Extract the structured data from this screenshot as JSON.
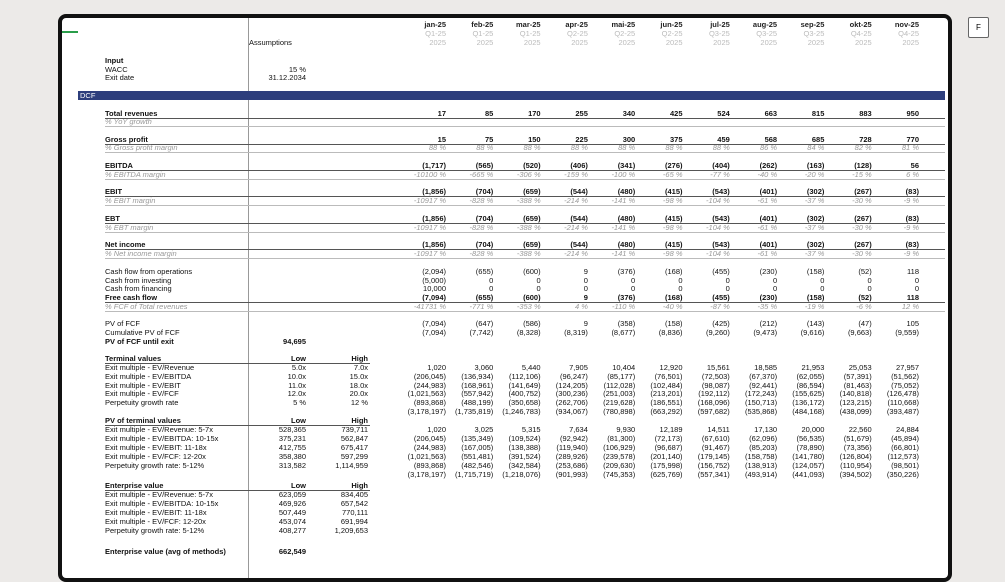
{
  "button": "F",
  "assumptions_header": "Assumptions",
  "section": "DCF",
  "months": [
    {
      "name": "jan-25",
      "quarter": "Q1-25",
      "year": "2025"
    },
    {
      "name": "feb-25",
      "quarter": "Q1-25",
      "year": "2025"
    },
    {
      "name": "mar-25",
      "quarter": "Q1-25",
      "year": "2025"
    },
    {
      "name": "apr-25",
      "quarter": "Q2-25",
      "year": "2025"
    },
    {
      "name": "mai-25",
      "quarter": "Q2-25",
      "year": "2025"
    },
    {
      "name": "jun-25",
      "quarter": "Q2-25",
      "year": "2025"
    },
    {
      "name": "jul-25",
      "quarter": "Q3-25",
      "year": "2025"
    },
    {
      "name": "aug-25",
      "quarter": "Q3-25",
      "year": "2025"
    },
    {
      "name": "sep-25",
      "quarter": "Q3-25",
      "year": "2025"
    },
    {
      "name": "okt-25",
      "quarter": "Q4-25",
      "year": "2025"
    },
    {
      "name": "nov-25",
      "quarter": "Q4-25",
      "year": "2025"
    }
  ],
  "rows": [
    {
      "label": "Input",
      "style": "bold"
    },
    {
      "label": "WACC",
      "style": "normal",
      "low": "15 %"
    },
    {
      "label": "Exit date",
      "style": "normal",
      "low": "31.12.2034"
    },
    {
      "label": "Total revenues",
      "style": "bold",
      "values": [
        "17",
        "85",
        "170",
        "255",
        "340",
        "425",
        "524",
        "663",
        "815",
        "883",
        "950"
      ]
    },
    {
      "label": "% YoY growth",
      "style": "italic"
    },
    {
      "label": "Gross profit",
      "style": "bold",
      "values": [
        "15",
        "75",
        "150",
        "225",
        "300",
        "375",
        "459",
        "568",
        "685",
        "728",
        "770"
      ]
    },
    {
      "label": "% Gross profit margin",
      "style": "italic",
      "values": [
        "88 %",
        "88 %",
        "88 %",
        "88 %",
        "88 %",
        "88 %",
        "88 %",
        "86 %",
        "84 %",
        "82 %",
        "81 %"
      ]
    },
    {
      "label": "EBITDA",
      "style": "bold",
      "values": [
        "(1,717)",
        "(565)",
        "(520)",
        "(406)",
        "(341)",
        "(276)",
        "(404)",
        "(262)",
        "(163)",
        "(128)",
        "56"
      ]
    },
    {
      "label": "% EBITDA margin",
      "style": "italic",
      "values": [
        "-10100 %",
        "-665 %",
        "-306 %",
        "-159 %",
        "-100 %",
        "-65 %",
        "-77 %",
        "-40 %",
        "-20 %",
        "-15 %",
        "6 %"
      ]
    },
    {
      "label": "EBIT",
      "style": "bold",
      "values": [
        "(1,856)",
        "(704)",
        "(659)",
        "(544)",
        "(480)",
        "(415)",
        "(543)",
        "(401)",
        "(302)",
        "(267)",
        "(83)"
      ]
    },
    {
      "label": "% EBIT margin",
      "style": "italic",
      "values": [
        "-10917 %",
        "-828 %",
        "-388 %",
        "-214 %",
        "-141 %",
        "-98 %",
        "-104 %",
        "-61 %",
        "-37 %",
        "-30 %",
        "-9 %"
      ]
    },
    {
      "label": "EBT",
      "style": "bold",
      "values": [
        "(1,856)",
        "(704)",
        "(659)",
        "(544)",
        "(480)",
        "(415)",
        "(543)",
        "(401)",
        "(302)",
        "(267)",
        "(83)"
      ]
    },
    {
      "label": "% EBT margin",
      "style": "italic",
      "values": [
        "-10917 %",
        "-828 %",
        "-388 %",
        "-214 %",
        "-141 %",
        "-98 %",
        "-104 %",
        "-61 %",
        "-37 %",
        "-30 %",
        "-9 %"
      ]
    },
    {
      "label": "Net income",
      "style": "bold",
      "values": [
        "(1,856)",
        "(704)",
        "(659)",
        "(544)",
        "(480)",
        "(415)",
        "(543)",
        "(401)",
        "(302)",
        "(267)",
        "(83)"
      ]
    },
    {
      "label": "% Net income margin",
      "style": "italic",
      "values": [
        "-10917 %",
        "-828 %",
        "-388 %",
        "-214 %",
        "-141 %",
        "-98 %",
        "-104 %",
        "-61 %",
        "-37 %",
        "-30 %",
        "-9 %"
      ]
    },
    {
      "label": "Cash flow from operations",
      "style": "normal",
      "values": [
        "(2,094)",
        "(655)",
        "(600)",
        "9",
        "(376)",
        "(168)",
        "(455)",
        "(230)",
        "(158)",
        "(52)",
        "118"
      ]
    },
    {
      "label": "Cash from investing",
      "style": "normal",
      "values": [
        "(5,000)",
        "0",
        "0",
        "0",
        "0",
        "0",
        "0",
        "0",
        "0",
        "0",
        "0"
      ]
    },
    {
      "label": "Cash from financing",
      "style": "normal",
      "values": [
        "10,000",
        "0",
        "0",
        "0",
        "0",
        "0",
        "0",
        "0",
        "0",
        "0",
        "0"
      ]
    },
    {
      "label": "Free cash flow",
      "style": "bold",
      "values": [
        "(7,094)",
        "(655)",
        "(600)",
        "9",
        "(376)",
        "(168)",
        "(455)",
        "(230)",
        "(158)",
        "(52)",
        "118"
      ]
    },
    {
      "label": "% FCF of Total revenues",
      "style": "italic",
      "values": [
        "-41731 %",
        "-771 %",
        "-353 %",
        "4 %",
        "-110 %",
        "-40 %",
        "-87 %",
        "-35 %",
        "-19 %",
        "-6 %",
        "12 %"
      ]
    },
    {
      "label": "PV of FCF",
      "style": "normal",
      "values": [
        "(7,094)",
        "(647)",
        "(586)",
        "9",
        "(358)",
        "(158)",
        "(425)",
        "(212)",
        "(143)",
        "(47)",
        "105"
      ]
    },
    {
      "label": "Cumulative PV of FCF",
      "style": "normal",
      "values": [
        "(7,094)",
        "(7,742)",
        "(8,328)",
        "(8,319)",
        "(8,677)",
        "(8,836)",
        "(9,260)",
        "(9,473)",
        "(9,616)",
        "(9,663)",
        "(9,559)"
      ]
    },
    {
      "label": "PV of FCF until exit",
      "style": "bold",
      "low": "94,695"
    },
    {
      "label": "Terminal values",
      "style": "bold",
      "low": "Low",
      "high": "High"
    },
    {
      "label": "Exit multiple - EV/Revenue",
      "style": "normal",
      "low": "5.0x",
      "high": "7.0x",
      "values": [
        "1,020",
        "3,060",
        "5,440",
        "7,905",
        "10,404",
        "12,920",
        "15,561",
        "18,585",
        "21,953",
        "25,053",
        "27,957"
      ]
    },
    {
      "label": "Exit multiple - EV/EBITDA",
      "style": "normal",
      "low": "10.0x",
      "high": "15.0x",
      "values": [
        "(206,045)",
        "(136,934)",
        "(112,106)",
        "(96,247)",
        "(85,177)",
        "(76,501)",
        "(72,503)",
        "(67,370)",
        "(62,055)",
        "(57,391)",
        "(51,562)"
      ]
    },
    {
      "label": "Exit multiple - EV/EBIT",
      "style": "normal",
      "low": "11.0x",
      "high": "18.0x",
      "values": [
        "(244,983)",
        "(168,961)",
        "(141,649)",
        "(124,205)",
        "(112,028)",
        "(102,484)",
        "(98,087)",
        "(92,441)",
        "(86,594)",
        "(81,463)",
        "(75,052)"
      ]
    },
    {
      "label": "Exit multiple - EV/FCF",
      "style": "normal",
      "low": "12.0x",
      "high": "20.0x",
      "values": [
        "(1,021,563)",
        "(557,942)",
        "(400,752)",
        "(300,236)",
        "(251,003)",
        "(213,201)",
        "(192,112)",
        "(172,243)",
        "(155,625)",
        "(140,818)",
        "(126,478)"
      ]
    },
    {
      "label": "Perpetuity growth rate",
      "style": "normal",
      "low": "5 %",
      "high": "12 %",
      "values": [
        "(893,868)",
        "(488,199)",
        "(350,658)",
        "(262,706)",
        "(219,628)",
        "(186,551)",
        "(168,096)",
        "(150,713)",
        "(136,172)",
        "(123,215)",
        "(110,668)"
      ]
    },
    {
      "style": "normal",
      "values": [
        "(3,178,197)",
        "(1,735,819)",
        "(1,246,783)",
        "(934,067)",
        "(780,898)",
        "(663,292)",
        "(597,682)",
        "(535,868)",
        "(484,168)",
        "(438,099)",
        "(393,487)"
      ]
    },
    {
      "label": "PV of terminal values",
      "style": "bold",
      "low": "Low",
      "high": "High"
    },
    {
      "label": "Exit multiple - EV/Revenue: 5-7x",
      "style": "normal",
      "low": "528,365",
      "high": "739,711",
      "values": [
        "1,020",
        "3,025",
        "5,315",
        "7,634",
        "9,930",
        "12,189",
        "14,511",
        "17,130",
        "20,000",
        "22,560",
        "24,884"
      ]
    },
    {
      "label": "Exit multiple - EV/EBITDA: 10-15x",
      "style": "normal",
      "low": "375,231",
      "high": "562,847",
      "values": [
        "(206,045)",
        "(135,349)",
        "(109,524)",
        "(92,942)",
        "(81,300)",
        "(72,173)",
        "(67,610)",
        "(62,096)",
        "(56,535)",
        "(51,679)",
        "(45,894)"
      ]
    },
    {
      "label": "Exit multiple - EV/EBIT: 11-18x",
      "style": "normal",
      "low": "412,755",
      "high": "675,417",
      "values": [
        "(244,983)",
        "(167,005)",
        "(138,388)",
        "(119,940)",
        "(106,929)",
        "(96,687)",
        "(91,467)",
        "(85,203)",
        "(78,890)",
        "(73,356)",
        "(66,801)"
      ]
    },
    {
      "label": "Exit multiple - EV/FCF: 12-20x",
      "style": "normal",
      "low": "358,380",
      "high": "597,299",
      "values": [
        "(1,021,563)",
        "(551,481)",
        "(391,524)",
        "(289,926)",
        "(239,578)",
        "(201,140)",
        "(179,145)",
        "(158,758)",
        "(141,780)",
        "(126,804)",
        "(112,573)"
      ]
    },
    {
      "label": "Perpetuity growth rate: 5-12%",
      "style": "normal",
      "low": "313,582",
      "high": "1,114,959",
      "values": [
        "(893,868)",
        "(482,546)",
        "(342,584)",
        "(253,686)",
        "(209,630)",
        "(175,998)",
        "(156,752)",
        "(138,913)",
        "(124,057)",
        "(110,954)",
        "(98,501)"
      ]
    },
    {
      "style": "normal",
      "values": [
        "(3,178,197)",
        "(1,715,719)",
        "(1,218,076)",
        "(901,993)",
        "(745,353)",
        "(625,769)",
        "(557,341)",
        "(493,914)",
        "(441,093)",
        "(394,502)",
        "(350,226)"
      ]
    },
    {
      "label": "Enterprise value",
      "style": "bold",
      "low": "Low",
      "high": "High"
    },
    {
      "label": "Exit multiple - EV/Revenue: 5-7x",
      "style": "normal",
      "low": "623,059",
      "high": "834,405"
    },
    {
      "label": "Exit multiple - EV/EBITDA: 10-15x",
      "style": "normal",
      "low": "469,926",
      "high": "657,542"
    },
    {
      "label": "Exit multiple - EV/EBIT: 11-18x",
      "style": "normal",
      "low": "507,449",
      "high": "770,111"
    },
    {
      "label": "Exit multiple - EV/FCF: 12-20x",
      "style": "normal",
      "low": "453,074",
      "high": "691,994"
    },
    {
      "label": "Perpetuity growth rate: 5-12%",
      "style": "normal",
      "low": "408,277",
      "high": "1,209,653"
    },
    {
      "label": "Enterprise value (avg of methods)",
      "style": "bold",
      "low": "662,549"
    }
  ]
}
